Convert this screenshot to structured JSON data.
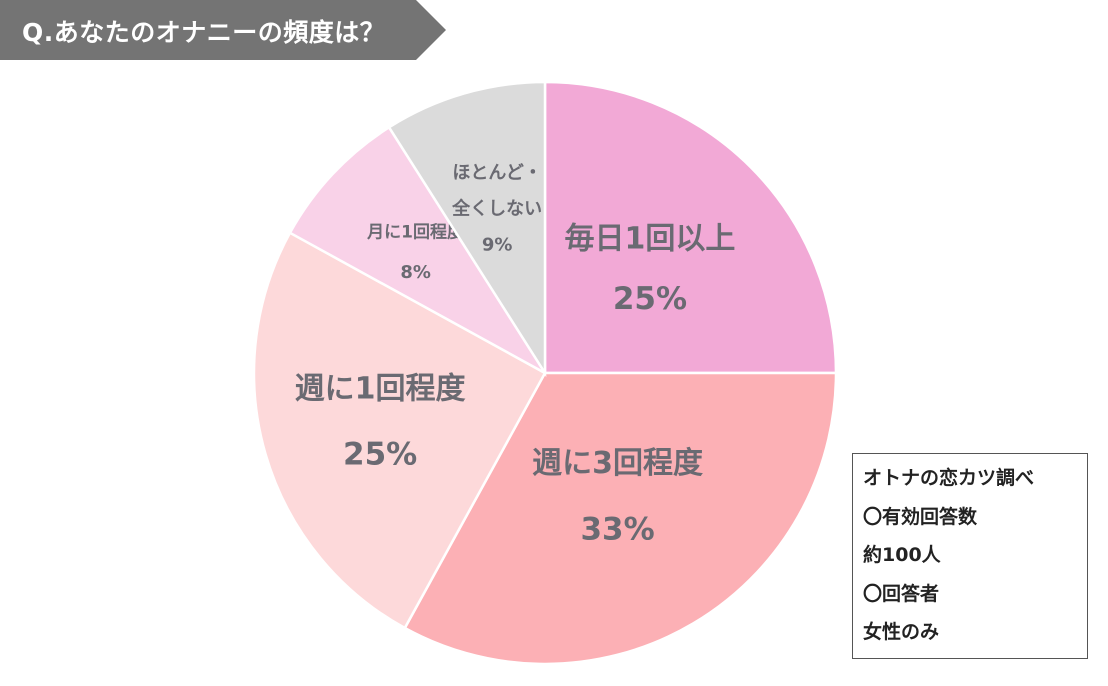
{
  "banner": {
    "title": "Q.あなたのオナニーの頻度は？"
  },
  "chart_data": {
    "type": "pie",
    "title": "Q.あなたのオナニーの頻度は？",
    "start": "12 o'clock",
    "direction": "clockwise",
    "slices": [
      {
        "label": "毎日1回以上",
        "value": 25,
        "value_label": "25%",
        "color": "#f2a9d6"
      },
      {
        "label": "週に3回程度",
        "value": 33,
        "value_label": "33%",
        "color": "#fcb0b5"
      },
      {
        "label": "週に1回程度",
        "value": 25,
        "value_label": "25%",
        "color": "#fdd9da"
      },
      {
        "label": "月に1回程度",
        "value": 8,
        "value_label": "8%",
        "color": "#f9d2e8"
      },
      {
        "label": "ほとんど・\n全くしない",
        "value": 9,
        "value_label": "9%",
        "color": "#dbdbdb"
      }
    ]
  },
  "info_box": {
    "lines": [
      "オトナの恋カツ調べ",
      "〇有効回答数",
      "約100人",
      "〇回答者",
      "女性のみ"
    ]
  }
}
